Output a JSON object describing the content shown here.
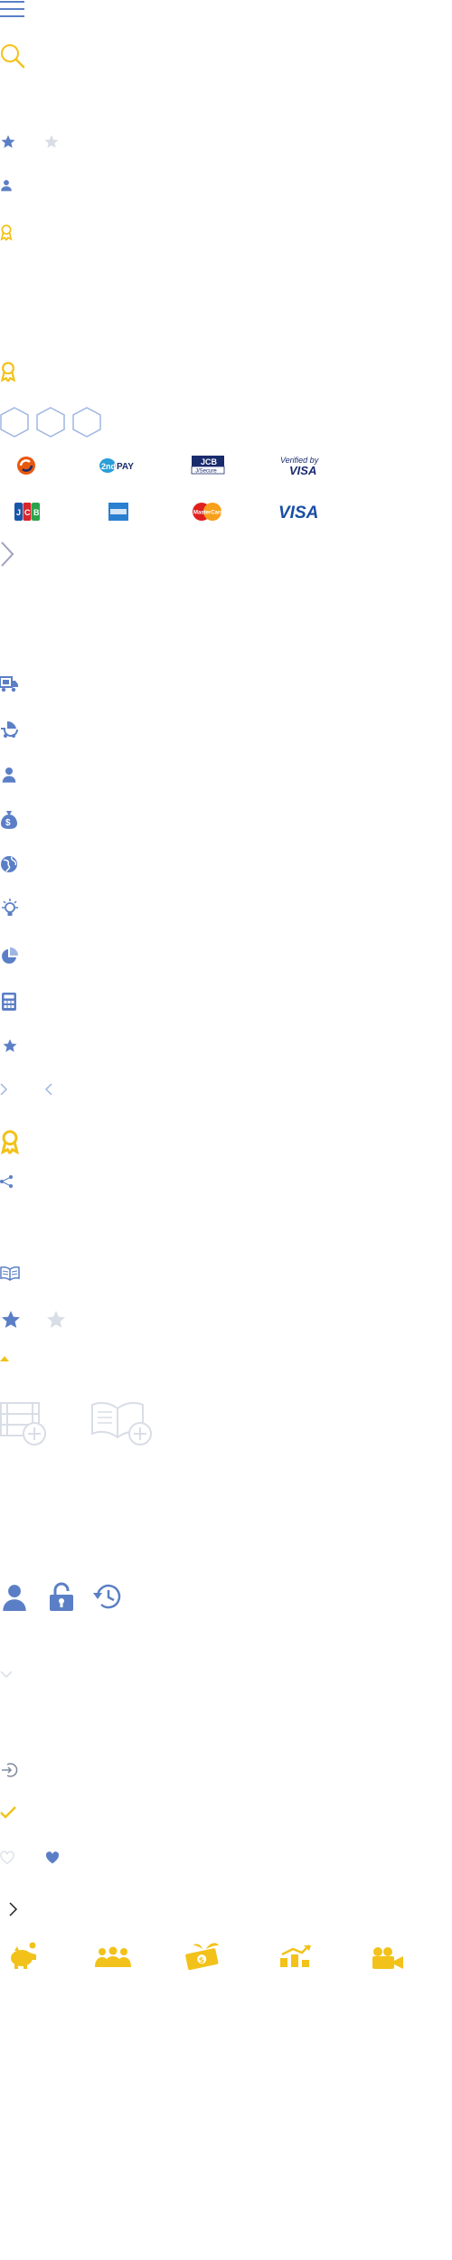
{
  "colors": {
    "blue": "#5b7fc6",
    "light_blue": "#9fb6e3",
    "gold": "#f2c21a",
    "grey": "#d9dde6",
    "dark_navy": "#1a2b6d",
    "purple_grey": "#9f9fc0"
  },
  "payment_logos": {
    "row1": [
      {
        "icon": "payment-logo-swirl",
        "text": ""
      },
      {
        "icon": "payment-logo-2ndpay",
        "text": "2ndPAY"
      },
      {
        "icon": "payment-logo-jcb-secure",
        "text": "J/Secure"
      },
      {
        "icon": "payment-logo-verified-by-visa",
        "text_top": "Verified by",
        "text_bottom": "VISA"
      }
    ],
    "row2": [
      {
        "icon": "payment-logo-jcb",
        "text": "JCB"
      },
      {
        "icon": "payment-logo-amex",
        "text": ""
      },
      {
        "icon": "payment-logo-mastercard",
        "text": "MasterCard"
      },
      {
        "icon": "payment-logo-visa",
        "text": "VISA"
      }
    ]
  },
  "icons": [
    "hamburger-menu-icon",
    "search-icon",
    "star-filled-icon",
    "star-empty-icon",
    "user-icon",
    "award-icon",
    "award-icon",
    "hexagon-icon",
    "chevron-right-icon",
    "truck-icon",
    "baby-stroller-icon",
    "user-icon",
    "money-bag-icon",
    "globe-icon",
    "lightbulb-icon",
    "pie-chart-icon",
    "calculator-icon",
    "star-icon",
    "chevron-right-icon",
    "chevron-left-icon",
    "award-icon",
    "share-icon",
    "open-book-icon",
    "star-filled-icon",
    "star-empty-icon",
    "caret-up-icon",
    "film-add-icon",
    "book-add-icon",
    "user-icon",
    "lock-icon",
    "history-icon",
    "chevron-down-icon",
    "logout-icon",
    "checkmark-icon",
    "heart-outline-icon",
    "heart-filled-icon",
    "chevron-right-icon",
    "piggy-bank-icon",
    "group-icon",
    "money-growth-icon",
    "growth-chart-icon",
    "video-camera-icon"
  ]
}
